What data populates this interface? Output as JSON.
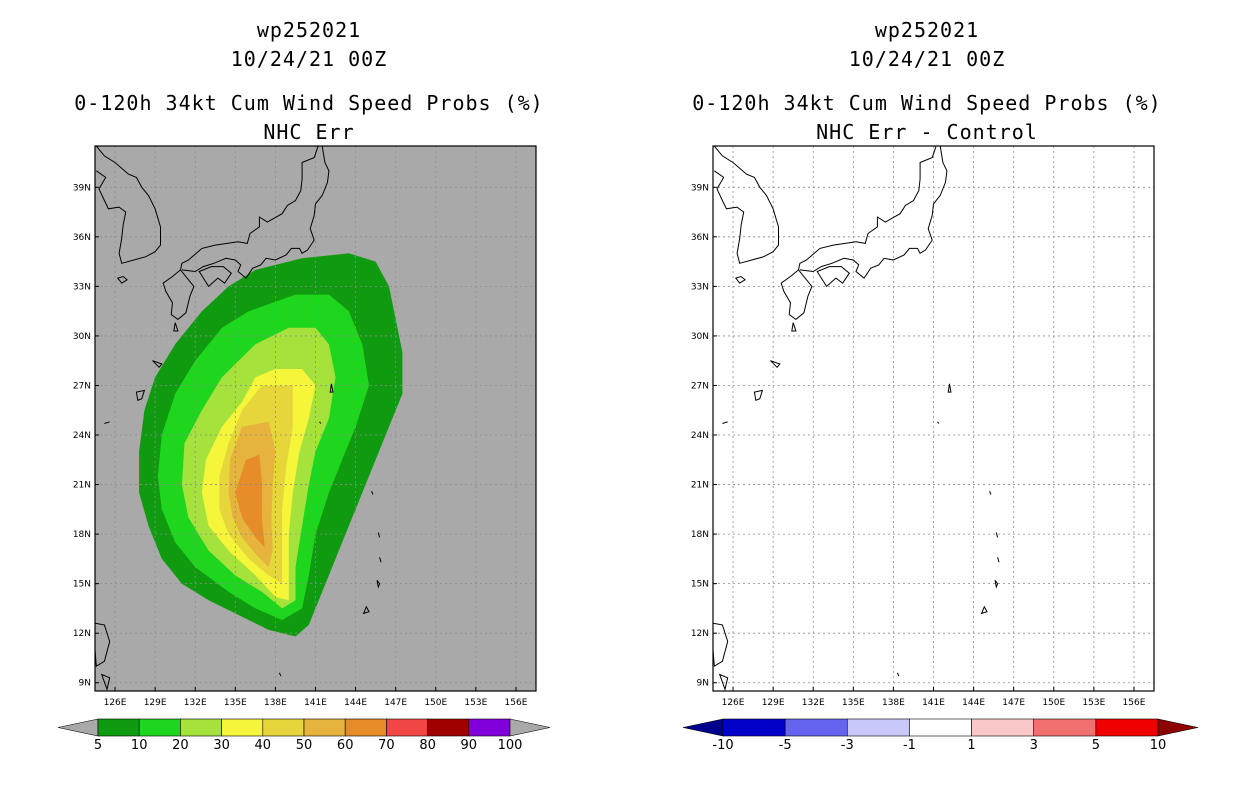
{
  "panels": [
    {
      "title_storm": "wp252021",
      "title_time": "10/24/21 00Z",
      "title_product": "0-120h 34kt Cum Wind Speed Probs (%)",
      "title_sub": "NHC Err",
      "background": "#a9a9a9",
      "colorbar": {
        "labels": [
          "5",
          "10",
          "20",
          "30",
          "40",
          "50",
          "60",
          "70",
          "80",
          "90",
          "100"
        ],
        "colors": [
          "#0f9a0f",
          "#1fd61f",
          "#a6e23c",
          "#f5f53a",
          "#e6d63c",
          "#e6b33c",
          "#e68c28",
          "#f04646",
          "#a00000",
          "#8200dc"
        ],
        "under_color": "#a9a9a9",
        "over_color": "#a9a9a9"
      }
    },
    {
      "title_storm": "wp252021",
      "title_time": "10/24/21 00Z",
      "title_product": "0-120h 34kt Cum Wind Speed Probs (%)",
      "title_sub": "NHC Err - Control",
      "background": "#ffffff",
      "colorbar": {
        "labels": [
          "-10",
          "-5",
          "-3",
          "-1",
          "1",
          "3",
          "5",
          "10"
        ],
        "colors": [
          "#0000c8",
          "#6464f0",
          "#c8c8fa",
          "#ffffff",
          "#fac8c8",
          "#f07070",
          "#f00000"
        ],
        "under_color": "#00008c",
        "over_color": "#8c0000"
      }
    }
  ],
  "axes": {
    "lat_labels": [
      "39N",
      "36N",
      "33N",
      "30N",
      "27N",
      "24N",
      "21N",
      "18N",
      "15N",
      "12N",
      "9N"
    ],
    "lon_labels": [
      "126E",
      "129E",
      "132E",
      "135E",
      "138E",
      "141E",
      "144E",
      "147E",
      "150E",
      "153E",
      "156E"
    ],
    "lat_values": [
      39,
      36,
      33,
      30,
      27,
      24,
      21,
      18,
      15,
      12,
      9
    ],
    "lon_values": [
      126,
      129,
      132,
      135,
      138,
      141,
      144,
      147,
      150,
      153,
      156
    ],
    "lon_range": [
      124.5,
      157.5
    ],
    "lat_range": [
      8.5,
      41.5
    ]
  }
}
